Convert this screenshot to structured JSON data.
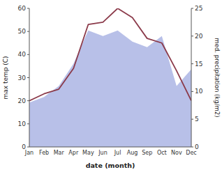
{
  "chart_data": {
    "type": "line",
    "xlabel": "date (month)",
    "ylabel": "max temp (C)",
    "y2label": "med. precipitation (kg/m2)",
    "categories": [
      "Jan",
      "Feb",
      "Mar",
      "Apr",
      "May",
      "Jun",
      "Jul",
      "Aug",
      "Sep",
      "Oct",
      "Nov",
      "Dec"
    ],
    "series": [
      {
        "type": "area",
        "axis": "y2",
        "color": "#b8c0e8",
        "values": [
          8,
          9,
          11,
          15,
          21,
          20,
          21,
          19,
          18,
          20,
          11,
          14
        ]
      },
      {
        "type": "line",
        "color": "#8b3a4a",
        "values": [
          20,
          23,
          25,
          34,
          53,
          54,
          60,
          56,
          47,
          45,
          33,
          20
        ]
      }
    ],
    "ylim": [
      0,
      60
    ],
    "yticks": [
      0,
      10,
      20,
      30,
      40,
      50,
      60
    ],
    "y2lim": [
      0,
      25
    ],
    "y2ticks": [
      0,
      5,
      10,
      15,
      20,
      25
    ],
    "grid": false
  }
}
